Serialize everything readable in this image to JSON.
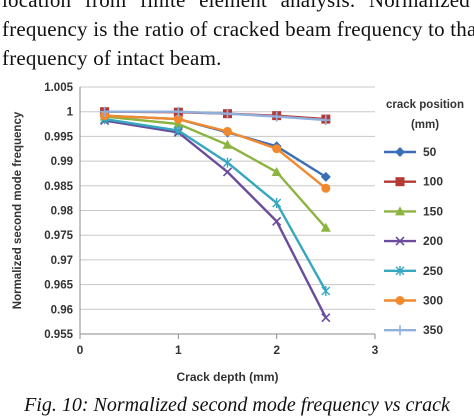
{
  "body_text": {
    "line1": "location from finite element analysis. Normalized",
    "line2": "frequency is the ratio of cracked beam frequency to that",
    "line3": "frequency of intact beam."
  },
  "caption": "Fig. 10: Normalized second mode frequency vs crack",
  "chart_data": {
    "type": "line",
    "title": "",
    "xlabel": "Crack depth (mm)",
    "ylabel": "Normalized second mode frequency",
    "xlim": [
      0,
      3
    ],
    "ylim": [
      0.955,
      1.005
    ],
    "x_ticks": [
      "0",
      "1",
      "2",
      "3"
    ],
    "y_ticks": [
      "0.955",
      "0.96",
      "0.965",
      "0.97",
      "0.975",
      "0.98",
      "0.985",
      "0.99",
      "0.995",
      "1",
      "1.005"
    ],
    "grid": "horizontal",
    "legend_title": "crack position (mm)",
    "legend_title_lines": [
      "crack position",
      "(mm)"
    ],
    "legend_placement": "right",
    "x": [
      0.25,
      1,
      1.5,
      2,
      2.5
    ],
    "series": [
      {
        "name": "50",
        "color": "#3a6fb5",
        "marker": "diamond",
        "values": [
          0.9992,
          0.9985,
          0.9958,
          0.993,
          0.9868
        ]
      },
      {
        "name": "100",
        "color": "#b53a36",
        "marker": "square",
        "values": [
          1.0,
          0.9999,
          0.9996,
          0.9992,
          0.9985
        ]
      },
      {
        "name": "150",
        "color": "#8db341",
        "marker": "triangle",
        "values": [
          0.999,
          0.9975,
          0.9933,
          0.9878,
          0.9765
        ]
      },
      {
        "name": "200",
        "color": "#6a4c9c",
        "marker": "x",
        "values": [
          0.9982,
          0.9958,
          0.9878,
          0.9778,
          0.9583
        ]
      },
      {
        "name": "250",
        "color": "#36a7bf",
        "marker": "star",
        "values": [
          0.9985,
          0.9962,
          0.9897,
          0.9815,
          0.9637
        ]
      },
      {
        "name": "300",
        "color": "#f18a2e",
        "marker": "circle",
        "values": [
          0.9992,
          0.9985,
          0.996,
          0.9925,
          0.9845
        ]
      },
      {
        "name": "350",
        "color": "#8fb0dc",
        "marker": "plus",
        "values": [
          1.0,
          1.0,
          0.9996,
          0.999,
          0.9983
        ]
      }
    ]
  }
}
